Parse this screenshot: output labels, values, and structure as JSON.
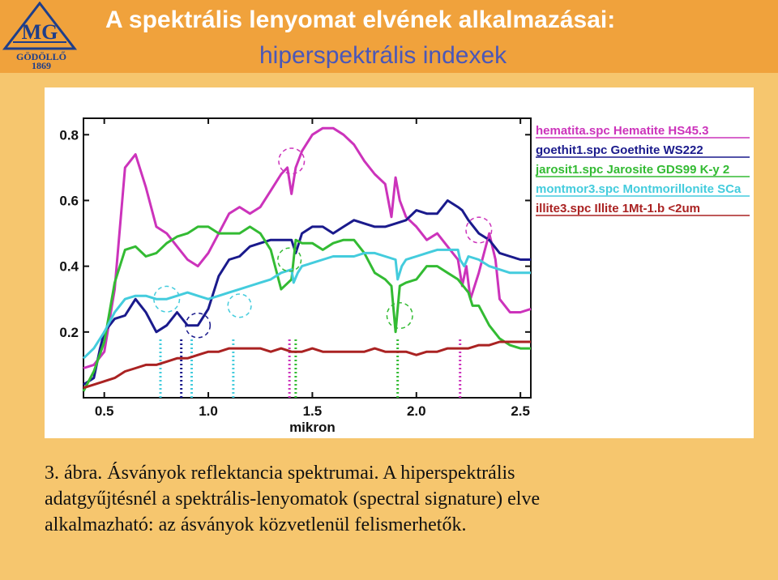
{
  "header": {
    "title_line1": "A spektrális lenyomat elvének alkalmazásai:",
    "title_line2": "hiperspektrális indexek",
    "logo_text": "GÖDÖLLŐ",
    "logo_year": "1869"
  },
  "caption": {
    "line1": "3. ábra. Ásványok reflektancia spektrumai. A hiperspektrális",
    "line2": "adatgyűjtésnél a spektrális-lenyomatok (spectral signature) elve",
    "line3": "alkalmazható: az ásványok közvetlenül felismerhetők."
  },
  "chart_data": {
    "type": "line",
    "title": "",
    "xlabel": "mikron",
    "ylabel": "",
    "xlim": [
      0.4,
      2.55
    ],
    "ylim": [
      0.0,
      0.85
    ],
    "xticks": [
      "0.5",
      "1.0",
      "1.5",
      "2.0",
      "2.5"
    ],
    "xtick_values": [
      0.5,
      1.0,
      1.5,
      2.0,
      2.5
    ],
    "yticks": [
      "0.2",
      "0.4",
      "0.6",
      "0.8"
    ],
    "ytick_values": [
      0.2,
      0.4,
      0.6,
      0.8
    ],
    "legend_position": "top-right",
    "series": [
      {
        "name": "hematita.spc Hematite HS45.3",
        "color": "#cc33bb",
        "x": [
          0.4,
          0.45,
          0.5,
          0.55,
          0.6,
          0.65,
          0.7,
          0.75,
          0.8,
          0.85,
          0.9,
          0.95,
          1.0,
          1.05,
          1.1,
          1.15,
          1.2,
          1.25,
          1.3,
          1.35,
          1.38,
          1.4,
          1.42,
          1.45,
          1.5,
          1.55,
          1.6,
          1.65,
          1.7,
          1.75,
          1.8,
          1.85,
          1.88,
          1.9,
          1.92,
          1.95,
          2.0,
          2.05,
          2.1,
          2.15,
          2.2,
          2.22,
          2.24,
          2.26,
          2.3,
          2.35,
          2.38,
          2.4,
          2.45,
          2.5,
          2.55
        ],
        "y": [
          0.09,
          0.1,
          0.14,
          0.33,
          0.7,
          0.74,
          0.64,
          0.52,
          0.5,
          0.46,
          0.42,
          0.4,
          0.44,
          0.5,
          0.56,
          0.58,
          0.56,
          0.58,
          0.63,
          0.68,
          0.7,
          0.62,
          0.7,
          0.75,
          0.8,
          0.82,
          0.82,
          0.8,
          0.77,
          0.72,
          0.68,
          0.65,
          0.55,
          0.67,
          0.6,
          0.55,
          0.52,
          0.48,
          0.5,
          0.46,
          0.42,
          0.34,
          0.4,
          0.3,
          0.38,
          0.5,
          0.42,
          0.3,
          0.26,
          0.26,
          0.27
        ]
      },
      {
        "name": "goethit1.spc Goethite WS222",
        "color": "#1a1a8c",
        "x": [
          0.4,
          0.45,
          0.48,
          0.5,
          0.55,
          0.6,
          0.65,
          0.7,
          0.75,
          0.8,
          0.85,
          0.9,
          0.95,
          1.0,
          1.05,
          1.1,
          1.15,
          1.2,
          1.25,
          1.3,
          1.35,
          1.4,
          1.42,
          1.45,
          1.5,
          1.55,
          1.6,
          1.65,
          1.7,
          1.75,
          1.8,
          1.85,
          1.9,
          1.95,
          2.0,
          2.05,
          2.1,
          2.15,
          2.2,
          2.22,
          2.25,
          2.3,
          2.35,
          2.4,
          2.45,
          2.5,
          2.55
        ],
        "y": [
          0.04,
          0.06,
          0.15,
          0.2,
          0.24,
          0.25,
          0.3,
          0.26,
          0.2,
          0.22,
          0.26,
          0.22,
          0.22,
          0.27,
          0.37,
          0.42,
          0.43,
          0.46,
          0.47,
          0.48,
          0.48,
          0.48,
          0.44,
          0.5,
          0.52,
          0.52,
          0.5,
          0.52,
          0.54,
          0.53,
          0.52,
          0.52,
          0.53,
          0.54,
          0.57,
          0.56,
          0.56,
          0.6,
          0.58,
          0.57,
          0.54,
          0.5,
          0.48,
          0.44,
          0.43,
          0.42,
          0.42
        ]
      },
      {
        "name": "jarosit1.spc Jarosite GDS99 K-y 2",
        "color": "#33bb33",
        "x": [
          0.4,
          0.45,
          0.5,
          0.55,
          0.6,
          0.65,
          0.7,
          0.75,
          0.8,
          0.85,
          0.9,
          0.95,
          1.0,
          1.05,
          1.1,
          1.15,
          1.2,
          1.25,
          1.3,
          1.35,
          1.4,
          1.42,
          1.45,
          1.5,
          1.55,
          1.6,
          1.65,
          1.7,
          1.75,
          1.8,
          1.85,
          1.88,
          1.9,
          1.92,
          1.95,
          2.0,
          2.05,
          2.1,
          2.15,
          2.2,
          2.25,
          2.27,
          2.3,
          2.35,
          2.4,
          2.45,
          2.5,
          2.55
        ],
        "y": [
          0.02,
          0.08,
          0.17,
          0.35,
          0.45,
          0.46,
          0.43,
          0.44,
          0.47,
          0.49,
          0.5,
          0.52,
          0.52,
          0.5,
          0.5,
          0.5,
          0.52,
          0.5,
          0.45,
          0.33,
          0.36,
          0.48,
          0.47,
          0.47,
          0.45,
          0.47,
          0.48,
          0.48,
          0.44,
          0.38,
          0.36,
          0.34,
          0.2,
          0.34,
          0.35,
          0.36,
          0.4,
          0.4,
          0.38,
          0.36,
          0.32,
          0.28,
          0.28,
          0.22,
          0.18,
          0.16,
          0.15,
          0.15
        ]
      },
      {
        "name": "montmor3.spc Montmorillonite SCa",
        "color": "#44ccdd",
        "x": [
          0.4,
          0.45,
          0.5,
          0.55,
          0.6,
          0.65,
          0.7,
          0.75,
          0.8,
          0.85,
          0.9,
          0.95,
          1.0,
          1.05,
          1.1,
          1.15,
          1.2,
          1.25,
          1.3,
          1.35,
          1.4,
          1.41,
          1.43,
          1.45,
          1.5,
          1.55,
          1.6,
          1.65,
          1.7,
          1.75,
          1.8,
          1.85,
          1.9,
          1.91,
          1.93,
          1.95,
          2.0,
          2.05,
          2.1,
          2.15,
          2.2,
          2.21,
          2.23,
          2.25,
          2.3,
          2.35,
          2.4,
          2.45,
          2.5,
          2.55
        ],
        "y": [
          0.12,
          0.15,
          0.2,
          0.26,
          0.3,
          0.31,
          0.31,
          0.3,
          0.3,
          0.31,
          0.32,
          0.31,
          0.3,
          0.31,
          0.32,
          0.33,
          0.34,
          0.35,
          0.36,
          0.38,
          0.39,
          0.35,
          0.38,
          0.4,
          0.41,
          0.42,
          0.43,
          0.43,
          0.43,
          0.44,
          0.44,
          0.43,
          0.42,
          0.36,
          0.4,
          0.42,
          0.43,
          0.44,
          0.45,
          0.45,
          0.45,
          0.42,
          0.4,
          0.43,
          0.42,
          0.4,
          0.39,
          0.38,
          0.38,
          0.38
        ]
      },
      {
        "name": "illite3.spc Illite 1Mt-1.b <2um",
        "color": "#aa2222",
        "x": [
          0.4,
          0.45,
          0.5,
          0.55,
          0.6,
          0.65,
          0.7,
          0.75,
          0.8,
          0.85,
          0.9,
          0.95,
          1.0,
          1.05,
          1.1,
          1.15,
          1.2,
          1.25,
          1.3,
          1.35,
          1.4,
          1.45,
          1.5,
          1.55,
          1.6,
          1.65,
          1.7,
          1.75,
          1.8,
          1.85,
          1.9,
          1.95,
          2.0,
          2.05,
          2.1,
          2.15,
          2.2,
          2.25,
          2.3,
          2.35,
          2.4,
          2.45,
          2.5,
          2.55
        ],
        "y": [
          0.03,
          0.04,
          0.05,
          0.06,
          0.08,
          0.09,
          0.1,
          0.1,
          0.11,
          0.12,
          0.12,
          0.13,
          0.14,
          0.14,
          0.15,
          0.15,
          0.15,
          0.15,
          0.14,
          0.15,
          0.14,
          0.14,
          0.15,
          0.14,
          0.14,
          0.14,
          0.14,
          0.14,
          0.15,
          0.14,
          0.14,
          0.14,
          0.13,
          0.14,
          0.14,
          0.15,
          0.15,
          0.15,
          0.16,
          0.16,
          0.17,
          0.17,
          0.17,
          0.17
        ]
      }
    ],
    "annotations": {
      "circles": [
        {
          "x": 0.8,
          "y": 0.3,
          "r": 0.22,
          "color": "#44ccdd",
          "dash": true
        },
        {
          "x": 0.95,
          "y": 0.22,
          "r": 0.21,
          "color": "#1a1a8c",
          "dash": true
        },
        {
          "x": 1.15,
          "y": 0.28,
          "r": 0.2,
          "color": "#44ccdd",
          "dash": true
        },
        {
          "x": 1.4,
          "y": 0.72,
          "r": 0.22,
          "color": "#cc33bb",
          "dash": true
        },
        {
          "x": 1.39,
          "y": 0.42,
          "r": 0.2,
          "color": "#33bb33",
          "dash": true
        },
        {
          "x": 1.92,
          "y": 0.25,
          "r": 0.22,
          "color": "#33bb33",
          "dash": true
        },
        {
          "x": 2.3,
          "y": 0.51,
          "r": 0.22,
          "color": "#cc33bb",
          "dash": true
        }
      ],
      "vlines": [
        {
          "x": 0.77,
          "color": "#44ccdd"
        },
        {
          "x": 0.87,
          "color": "#1a1a8c"
        },
        {
          "x": 0.92,
          "color": "#44ccdd"
        },
        {
          "x": 1.12,
          "color": "#44ccdd"
        },
        {
          "x": 1.39,
          "color": "#cc33bb"
        },
        {
          "x": 1.42,
          "color": "#33bb33"
        },
        {
          "x": 1.91,
          "color": "#33bb33"
        },
        {
          "x": 2.21,
          "color": "#cc33bb"
        }
      ]
    }
  }
}
